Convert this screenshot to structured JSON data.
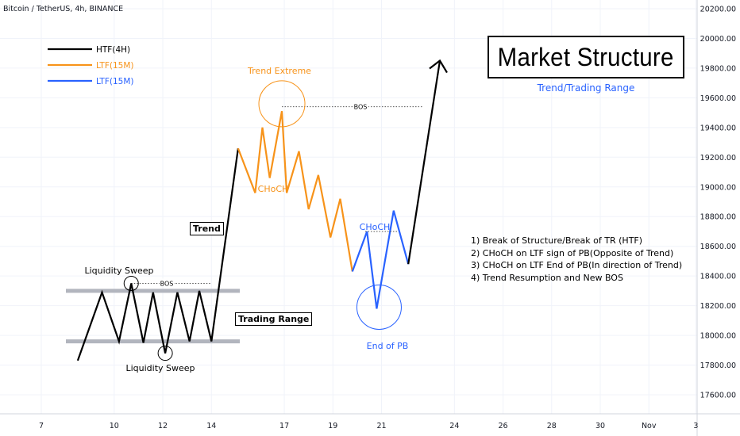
{
  "header": {
    "symbol": "Bitcoin / TetherUS, 4h, BINANCE"
  },
  "title_box": {
    "title": "Market Structure",
    "subtitle": "Trend/Trading Range"
  },
  "legend": [
    {
      "label": "HTF(4H)",
      "color": "#000000"
    },
    {
      "label": "LTF(15M)",
      "color": "#f7931a"
    },
    {
      "label": "LTF(15M)",
      "color": "#2962ff"
    }
  ],
  "notes": [
    "1) Break of Structure/Break of TR (HTF)",
    "2) CHoCH on LTF sign of PB(Opposite of Trend)",
    "3) CHoCH on LTF End of PB(In direction of Trend)",
    "4) Trend Resumption and New BOS"
  ],
  "labels": {
    "trend": "Trend",
    "trading_range": "Trading Range",
    "liq_sweep_top": "Liquidity Sweep",
    "liq_sweep_bottom": "Liquidity Sweep",
    "bos_small": "BOS",
    "bos_big": "BOS",
    "trend_extreme": "Trend Extreme",
    "choch_orange": "CHoCH",
    "choch_blue": "CHoCH",
    "end_of_pb": "End of PB"
  },
  "chart_data": {
    "type": "line",
    "y_axis_ticks": [
      "20200.00",
      "20000.00",
      "19800.00",
      "19600.00",
      "19400.00",
      "19200.00",
      "19000.00",
      "18800.00",
      "18600.00",
      "18400.00",
      "18200.00",
      "18000.00",
      "17800.00",
      "17600.00"
    ],
    "x_axis_ticks": [
      "7",
      "10",
      "12",
      "14",
      "17",
      "19",
      "21",
      "24",
      "26",
      "28",
      "30",
      "Nov",
      "3"
    ],
    "ylim": [
      17450,
      20280
    ],
    "colors": {
      "htf": "#000000",
      "ltf_pb": "#f7931a",
      "ltf_end": "#2962ff",
      "grid": "#f0f3fa",
      "range_band": "#b2b5be",
      "axis_text": "#131722"
    },
    "series": [
      {
        "name": "HTF(4H)",
        "color": "#000000",
        "points": [
          [
            8.5,
            17830
          ],
          [
            9.5,
            18290
          ],
          [
            10.2,
            17960
          ],
          [
            10.7,
            18350
          ],
          [
            11.2,
            17950
          ],
          [
            11.6,
            18290
          ],
          [
            12.1,
            17880
          ],
          [
            12.6,
            18290
          ],
          [
            13.1,
            17960
          ],
          [
            13.5,
            18300
          ],
          [
            14.0,
            17960
          ],
          [
            15.1,
            19260
          ]
        ]
      },
      {
        "name": "LTF(15M)",
        "color": "#f7931a",
        "points": [
          [
            15.1,
            19260
          ],
          [
            15.8,
            18960
          ],
          [
            16.1,
            19400
          ],
          [
            16.4,
            19060
          ],
          [
            16.9,
            19510
          ],
          [
            17.1,
            18960
          ],
          [
            17.6,
            19240
          ],
          [
            18.0,
            18850
          ],
          [
            18.4,
            19080
          ],
          [
            18.9,
            18660
          ],
          [
            19.3,
            18920
          ],
          [
            19.8,
            18430
          ]
        ]
      },
      {
        "name": "LTF(15M)",
        "color": "#2962ff",
        "points": [
          [
            19.8,
            18430
          ],
          [
            20.4,
            18700
          ],
          [
            20.8,
            18180
          ],
          [
            21.5,
            18840
          ],
          [
            22.1,
            18480
          ]
        ]
      },
      {
        "name": "HTF(4H)",
        "color": "#000000",
        "points": [
          [
            22.1,
            18480
          ],
          [
            23.4,
            19850
          ]
        ]
      }
    ],
    "range_levels": [
      18300,
      17960
    ],
    "bos_levels": [
      {
        "y": 18350,
        "x_from": 10.7,
        "x_to": 14.0
      },
      {
        "y": 19540,
        "x_from": 16.9,
        "x_to": 22.7
      }
    ],
    "circles": [
      {
        "x": 10.7,
        "y": 18350,
        "color": "#000000"
      },
      {
        "x": 12.1,
        "y": 17880,
        "color": "#000000"
      },
      {
        "x": 16.9,
        "y": 19560,
        "color": "#f7931a"
      },
      {
        "x": 20.9,
        "y": 18190,
        "color": "#2962ff"
      }
    ]
  }
}
